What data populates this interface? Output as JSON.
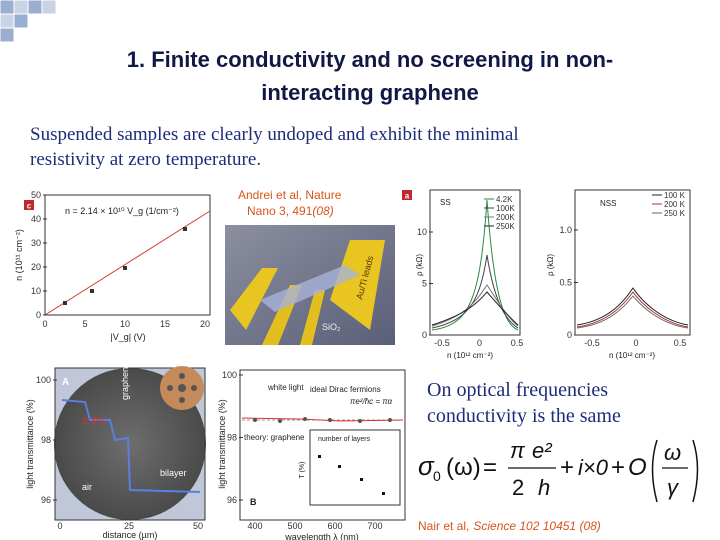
{
  "header": {
    "title_lines": [
      "1. Finite conductivity and no screening in non-",
      "interacting graphene"
    ]
  },
  "intro": {
    "lines": [
      "Suspended samples are clearly undoped and exhibit the minimal",
      "resistivity at zero temperature."
    ]
  },
  "citation_top": {
    "lines": [
      "Andrei et al, Nature",
      "Nano 3, 491"
    ],
    "year": "(08)"
  },
  "figure_c": {
    "label": "c",
    "equation": "n = 2.14 × 10¹⁰ V_g (1/cm⁻²)",
    "y_label": "n (10¹¹ cm⁻²)",
    "x_label": "|V_g| (V)",
    "yticks": [
      "0",
      "10",
      "20",
      "30",
      "40",
      "50"
    ],
    "xticks": [
      "0",
      "5",
      "10",
      "15",
      "20"
    ]
  },
  "device": {
    "labels": [
      "SiO₂",
      "Au/Ti leads"
    ]
  },
  "figure_a": {
    "label": "a",
    "left": {
      "tag": "SS",
      "legend": [
        "4.2K",
        "100K",
        "200K",
        "250K"
      ],
      "y_label": "ρ (kΩ)",
      "yticks": [
        "0",
        "5",
        "10"
      ],
      "xticks": [
        "-0.5",
        "0",
        "0.5"
      ],
      "x_label": "n (10¹² cm⁻²)"
    },
    "right": {
      "tag": "NSS",
      "legend": [
        "100 K",
        "200 K",
        "250 K"
      ],
      "y_label": "ρ (kΩ)",
      "yticks": [
        "0",
        "0.5",
        "1.0"
      ],
      "xticks": [
        "-0.5",
        "0",
        "0.5"
      ],
      "x_label": "n (10¹² cm⁻²)"
    }
  },
  "figure_A": {
    "label": "A",
    "step": "2.3%",
    "layers": [
      "graphene",
      "bilayer",
      "air"
    ],
    "y_label": "light transmittance (%)",
    "yticks": [
      "96",
      "98",
      "100"
    ],
    "xticks": [
      "0",
      "25",
      "50"
    ],
    "x_label": "distance (µm)"
  },
  "figure_B": {
    "label": "B",
    "legend": [
      "white light",
      "ideal Dirac fermions",
      "theory: graphene"
    ],
    "formula": "πe²/ħc = πα",
    "inset_title": "number of layers",
    "inset_y_label": "T (%)",
    "y_label": "light transmittance (%)",
    "yticks": [
      "96",
      "98",
      "100"
    ],
    "xticks": [
      "400",
      "500",
      "600",
      "700"
    ],
    "x_label": "wavelength λ (nm)"
  },
  "optical": {
    "lines": [
      "On optical frequencies",
      "conductivity is the same"
    ]
  },
  "formula": {
    "sigma": "σ",
    "sub": "0",
    "arg": "(ω)",
    "eq": "=",
    "pi": "π",
    "e2": "e²",
    "den": "2",
    "h": "h",
    "plus1": "+",
    "i0": "i×0",
    "plus2": "+",
    "O": "O",
    "omega": "ω",
    "gamma": "γ"
  },
  "citation_bottom": {
    "author": "Nair et al,",
    "ref": "Science 102 10451 (08)"
  }
}
